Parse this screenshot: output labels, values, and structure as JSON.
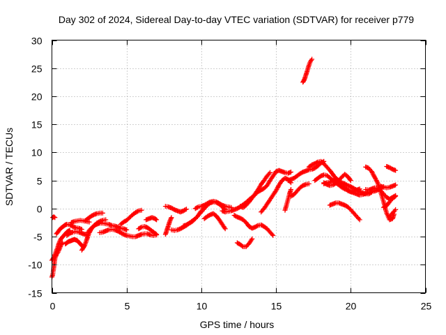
{
  "chart_data": {
    "type": "scatter",
    "title": "Day 302 of 2024, Sidereal Day-to-day VTEC variation (SDTVAR) for receiver p779",
    "xlabel": "GPS time / hours",
    "ylabel": "SDTVAR / TECUs",
    "xlim": [
      0,
      25
    ],
    "ylim": [
      -15,
      30
    ],
    "xticks": [
      0,
      5,
      10,
      15,
      20,
      25
    ],
    "yticks": [
      -15,
      -10,
      -5,
      0,
      5,
      10,
      15,
      20,
      25,
      30
    ],
    "grid": true,
    "marker": "plus",
    "color": "#ff0000",
    "series": [
      {
        "name": "arc-1",
        "x": [
          0.0,
          0.05,
          0.1,
          0.15,
          0.2,
          0.25,
          0.3,
          0.35,
          0.4,
          0.5,
          0.6,
          0.7
        ],
        "y": [
          -12.2,
          -11.8,
          -11,
          -10,
          -9,
          -8.5,
          -8.2,
          -8,
          -7.8,
          -7.2,
          -6.6,
          -6
        ]
      },
      {
        "name": "arc-2",
        "x": [
          0.0,
          0.1,
          0.2,
          0.3,
          0.4,
          0.5,
          0.6,
          0.7,
          0.8,
          0.9,
          1.0,
          1.1,
          1.2
        ],
        "y": [
          -9.2,
          -8.8,
          -8.2,
          -7.5,
          -6.8,
          -6,
          -5.4,
          -5.1,
          -4.8,
          -4.5,
          -4.2,
          -4,
          -3.9
        ]
      },
      {
        "name": "arc-3",
        "x": [
          0.05,
          0.1,
          0.15,
          0.2
        ],
        "y": [
          -1.6,
          -1.5,
          -1.5,
          -1.6
        ]
      },
      {
        "name": "arc-4",
        "x": [
          0.3,
          0.4,
          0.5,
          0.6,
          0.7,
          0.8,
          0.9,
          1.0,
          1.2,
          1.4,
          1.6,
          1.8,
          2.0
        ],
        "y": [
          -4.5,
          -4.2,
          -3.8,
          -3.5,
          -3.3,
          -3.1,
          -2.9,
          -2.8,
          -2.9,
          -3.2,
          -3.4,
          -3.5,
          -3.7
        ]
      },
      {
        "name": "arc-5",
        "x": [
          0.9,
          1.0,
          1.1,
          1.2,
          1.3,
          1.4,
          1.5,
          1.6,
          1.7,
          1.8,
          1.9,
          2.0,
          2.1
        ],
        "y": [
          -6.3,
          -6.1,
          -5.9,
          -5.8,
          -5.7,
          -5.6,
          -5.5,
          -5.6,
          -5.7,
          -6,
          -6.3,
          -6.6,
          -6.8
        ]
      },
      {
        "name": "arc-6",
        "x": [
          1.0,
          1.2,
          1.4,
          1.6,
          1.8,
          2.0,
          2.2,
          2.4
        ],
        "y": [
          -4.8,
          -4.4,
          -4.2,
          -4.1,
          -4.2,
          -4.4,
          -4.6,
          -4.8
        ]
      },
      {
        "name": "arc-7",
        "x": [
          1.3,
          1.5,
          1.7,
          1.9,
          2.1,
          2.3,
          2.5
        ],
        "y": [
          -2.5,
          -2.3,
          -2.2,
          -2.1,
          -2.2,
          -2.3,
          -2.4
        ]
      },
      {
        "name": "arc-8",
        "x": [
          2.0,
          2.1,
          2.2,
          2.3,
          2.4,
          2.5,
          2.6,
          2.7,
          2.8,
          2.9,
          3.0,
          3.2,
          3.4,
          3.6,
          3.8,
          4.0,
          4.2,
          4.4,
          4.6,
          4.8,
          5.0
        ],
        "y": [
          -7.4,
          -7,
          -6.5,
          -5.8,
          -5,
          -4.3,
          -3.8,
          -3.4,
          -3.1,
          -2.9,
          -2.8,
          -2.6,
          -2.6,
          -2.7,
          -2.8,
          -3,
          -3.1,
          -3.3,
          -3.5,
          -3.6,
          -3.8
        ]
      },
      {
        "name": "arc-9",
        "x": [
          2.2,
          2.4,
          2.6,
          2.8,
          3.0,
          3.2,
          3.4
        ],
        "y": [
          -2.2,
          -1.8,
          -1.4,
          -1.1,
          -0.9,
          -0.8,
          -0.8
        ]
      },
      {
        "name": "arc-10",
        "x": [
          2.4,
          2.6,
          2.8,
          3.0,
          3.2,
          3.4,
          3.6
        ],
        "y": [
          -4.2,
          -3.6,
          -3.1,
          -2.6,
          -2.3,
          -2.1,
          -2
        ]
      },
      {
        "name": "arc-11",
        "x": [
          3.2,
          3.4,
          3.6,
          3.8,
          4.0,
          4.2,
          4.4,
          4.6,
          4.8,
          5.0,
          5.2,
          5.4,
          5.6,
          5.8,
          6.0,
          6.2,
          6.4,
          6.6,
          6.8,
          7.0
        ],
        "y": [
          -4.3,
          -4.2,
          -4,
          -3.8,
          -3.7,
          -3.8,
          -4,
          -4.3,
          -4.6,
          -4.8,
          -4.9,
          -5,
          -5,
          -4.8,
          -4.6,
          -4.5,
          -4.5,
          -4.7,
          -4.8,
          -4.7
        ]
      },
      {
        "name": "arc-12",
        "x": [
          4.6,
          4.8,
          5.0,
          5.2,
          5.4,
          5.6,
          5.8,
          6.0
        ],
        "y": [
          -2.8,
          -2.4,
          -2.1,
          -1.6,
          -1.1,
          -0.7,
          -0.4,
          -0.3
        ]
      },
      {
        "name": "arc-13",
        "x": [
          5.8,
          6.0,
          6.2,
          6.4,
          6.6,
          6.8,
          7.0
        ],
        "y": [
          -3.6,
          -3.3,
          -3.2,
          -3.4,
          -3.8,
          -4.2,
          -4.6
        ]
      },
      {
        "name": "arc-14",
        "x": [
          6.3,
          6.5,
          6.7,
          6.9,
          7.0
        ],
        "y": [
          -2,
          -1.8,
          -1.6,
          -1.8,
          -2
        ]
      },
      {
        "name": "arc-15",
        "x": [
          7.6,
          7.7,
          7.8,
          7.9,
          8.0
        ],
        "y": [
          -4.6,
          -3.8,
          -3,
          -2.2,
          -1.6
        ]
      },
      {
        "name": "arc-16",
        "x": [
          7.6,
          7.8,
          8.0,
          8.2,
          8.4,
          8.6,
          8.8,
          9.0
        ],
        "y": [
          0.4,
          0.3,
          0.1,
          -0.2,
          -0.4,
          -0.6,
          -0.4,
          -0.1
        ]
      },
      {
        "name": "arc-17",
        "x": [
          8.0,
          8.2,
          8.4,
          8.6,
          8.8,
          9.0,
          9.2,
          9.4,
          9.6,
          9.8,
          10.0,
          10.2,
          10.4,
          10.6,
          10.8,
          11.0,
          11.2,
          11.4,
          11.6
        ],
        "y": [
          -3.8,
          -3.9,
          -3.8,
          -3.6,
          -3.3,
          -3,
          -2.6,
          -2.2,
          -1.8,
          -1.2,
          -0.6,
          0,
          0.6,
          1,
          1.2,
          1.1,
          0.8,
          0.3,
          -0.2
        ]
      },
      {
        "name": "arc-18",
        "x": [
          8.8,
          9.0,
          9.2,
          9.4,
          9.6,
          9.8,
          10.0
        ],
        "y": [
          -3.1,
          -2.9,
          -2.6,
          -2.3,
          -1.8,
          -1.2,
          -0.4
        ]
      },
      {
        "name": "arc-19",
        "x": [
          9.6,
          9.8,
          10.0,
          10.2,
          10.4,
          10.6,
          10.8,
          11.0,
          11.2,
          11.4,
          11.6,
          11.8,
          12.0
        ],
        "y": [
          0,
          0.3,
          0.4,
          0.6,
          0.9,
          1.2,
          1.3,
          1.2,
          0.9,
          0.6,
          0.4,
          0.3,
          0.2
        ]
      },
      {
        "name": "arc-20",
        "x": [
          10.2,
          10.4,
          10.6,
          10.8,
          11.0,
          11.2,
          11.4,
          11.6
        ],
        "y": [
          -1.8,
          -1.4,
          -1.1,
          -0.9,
          -1.3,
          -2,
          -2.8,
          -3.6
        ]
      },
      {
        "name": "arc-21",
        "x": [
          11.4,
          11.6,
          11.8,
          12.0,
          12.2,
          12.4,
          12.6,
          12.8,
          13.0,
          13.2,
          13.4,
          13.6,
          13.8,
          14.0,
          14.2,
          14.4,
          14.6
        ],
        "y": [
          -0.4,
          -0.6,
          -0.5,
          -0.4,
          -0.2,
          0,
          0.3,
          0.7,
          1.1,
          1.6,
          2,
          2.6,
          3.4,
          4.3,
          5,
          5.8,
          6.4
        ]
      },
      {
        "name": "arc-22",
        "x": [
          12.2,
          12.4,
          12.6,
          12.8,
          13.0,
          13.2,
          13.4,
          13.6,
          13.8,
          14.0,
          14.2,
          14.4,
          14.6,
          14.8
        ],
        "y": [
          -1.2,
          -1.5,
          -1.7,
          -2,
          -2.5,
          -3.2,
          -3.5,
          -3.3,
          -3,
          -2.9,
          -3.2,
          -3.6,
          -4.2,
          -4.8
        ]
      },
      {
        "name": "arc-23",
        "x": [
          12.4,
          12.6,
          12.8,
          13.0,
          13.2,
          13.4
        ],
        "y": [
          -6.1,
          -6.4,
          -6.8,
          -6.8,
          -6.2,
          -5.4
        ]
      },
      {
        "name": "arc-24",
        "x": [
          12.6,
          12.8,
          13.0,
          13.2,
          13.4,
          13.6,
          13.8,
          14.0,
          14.2,
          14.4,
          14.6,
          14.8,
          15.0,
          15.2,
          15.4,
          15.6,
          15.8,
          16.0
        ],
        "y": [
          0.4,
          0.2,
          0.6,
          1.2,
          1.9,
          2.5,
          3,
          3.3,
          3.6,
          4.1,
          5,
          5.8,
          6.6,
          6.8,
          6.6,
          6.4,
          6.3,
          6.5
        ]
      },
      {
        "name": "arc-25",
        "x": [
          14.0,
          14.2,
          14.4,
          14.6,
          14.8,
          15.0,
          15.2,
          15.4,
          15.6,
          15.8,
          16.0
        ],
        "y": [
          -0.6,
          0,
          0.8,
          1.6,
          2.4,
          3.2,
          4.2,
          5,
          5.4,
          5.2,
          4.6
        ]
      },
      {
        "name": "arc-26",
        "x": [
          15.6,
          15.7,
          15.8,
          15.9,
          16.0
        ],
        "y": [
          -0.3,
          0.6,
          1.6,
          2.6,
          3.4
        ]
      },
      {
        "name": "arc-27",
        "x": [
          15.8,
          16.0,
          16.2,
          16.4,
          16.6,
          16.8,
          17.0,
          17.2,
          17.4,
          17.6,
          17.8,
          18.0,
          18.2
        ],
        "y": [
          5,
          5.2,
          5.4,
          5.8,
          6.2,
          6.5,
          6.7,
          6.9,
          7,
          7.2,
          7.6,
          8.1,
          8.4
        ]
      },
      {
        "name": "arc-28",
        "x": [
          16.0,
          16.2,
          16.4,
          16.6,
          16.8,
          17.0,
          17.2
        ],
        "y": [
          2.2,
          2.5,
          3.1,
          3.7,
          4.1,
          4.3,
          4.4
        ]
      },
      {
        "name": "arc-29",
        "x": [
          16.8,
          16.9,
          17.0,
          17.1,
          17.2,
          17.3,
          17.4
        ],
        "y": [
          22.5,
          23,
          23.8,
          24.6,
          25.5,
          26.2,
          26.6
        ]
      },
      {
        "name": "arc-30",
        "x": [
          17.2,
          17.4,
          17.6,
          17.8,
          18.0,
          18.2,
          18.4,
          18.6,
          18.8,
          19.0,
          19.2,
          19.4,
          19.6,
          19.8,
          20.0
        ],
        "y": [
          7.4,
          7.8,
          8,
          8.3,
          8.4,
          8,
          7.4,
          6.8,
          6.1,
          5.4,
          5,
          5.6,
          6.1,
          5.7,
          5
        ]
      },
      {
        "name": "arc-31",
        "x": [
          17.6,
          17.8,
          18.0,
          18.2,
          18.4,
          18.6,
          18.8,
          19.0,
          19.2,
          19.4,
          19.6,
          19.8,
          20.0,
          20.2,
          20.4,
          20.6,
          20.8,
          21.0,
          21.2,
          21.4,
          21.6,
          21.8,
          22.0,
          22.2
        ],
        "y": [
          5,
          5.4,
          5.8,
          6,
          5.9,
          5.5,
          5,
          4.6,
          4.2,
          3.8,
          3.5,
          3.3,
          3,
          2.8,
          2.6,
          2.4,
          2.5,
          2.7,
          2.9,
          3,
          3.1,
          3.3,
          3.6,
          3.9
        ]
      },
      {
        "name": "arc-32",
        "x": [
          18.2,
          18.4,
          18.6,
          18.8,
          19.0,
          19.2,
          19.4,
          19.6,
          19.8,
          20.0,
          20.2,
          20.4,
          20.6,
          20.8,
          21.0,
          21.2,
          21.4
        ],
        "y": [
          4.6,
          4.3,
          4.1,
          4.2,
          4.5,
          4.8,
          4.6,
          4.4,
          4.1,
          3.9,
          3.6,
          3.3,
          3,
          2.8,
          2.6,
          2.6,
          2.9
        ]
      },
      {
        "name": "arc-33",
        "x": [
          18.2,
          18.4,
          18.6,
          18.8,
          19.0,
          19.2,
          19.4,
          19.6,
          19.8,
          20.0,
          20.2,
          20.4,
          20.6
        ],
        "y": [
          4.4,
          4.6,
          4.7,
          5,
          5.2,
          4.8,
          4.3,
          3.7,
          3.2,
          3,
          3.1,
          3.3,
          3.5
        ]
      },
      {
        "name": "arc-34",
        "x": [
          18.6,
          18.8,
          19.0,
          19.2,
          19.4,
          19.6,
          19.8,
          20.0,
          20.2,
          20.4,
          20.6
        ],
        "y": [
          0.6,
          0.8,
          1,
          1,
          0.8,
          0.6,
          0.3,
          -0.2,
          -0.8,
          -1.4,
          -2
        ]
      },
      {
        "name": "arc-35",
        "x": [
          21.0,
          21.2,
          21.4,
          21.6,
          21.8,
          22.0,
          22.2,
          22.4,
          22.6,
          22.8,
          23.0
        ],
        "y": [
          3.4,
          3.3,
          3.5,
          3.7,
          3.6,
          3.2,
          2.6,
          2,
          1.7,
          2,
          2.3
        ]
      },
      {
        "name": "arc-36",
        "x": [
          21.0,
          21.2,
          21.4,
          21.6,
          21.8,
          22.0,
          22.2,
          22.4,
          22.6,
          22.8,
          22.9
        ],
        "y": [
          7.4,
          7.2,
          6.6,
          5.6,
          4.6,
          3,
          1.2,
          -0.8,
          -2,
          -1.8,
          -1
        ]
      },
      {
        "name": "arc-37",
        "x": [
          22.2,
          22.4,
          22.6,
          22.8,
          23.0
        ],
        "y": [
          0.2,
          0.5,
          1.2,
          1.8,
          2.2
        ]
      },
      {
        "name": "arc-38",
        "x": [
          22.0,
          22.2,
          22.4,
          22.6,
          22.8,
          23.0
        ],
        "y": [
          4,
          3.8,
          3.7,
          3.8,
          4,
          4.2
        ]
      },
      {
        "name": "arc-39",
        "x": [
          22.4,
          22.6,
          22.8,
          23.0
        ],
        "y": [
          7.5,
          7.3,
          7,
          6.8
        ]
      },
      {
        "name": "arc-40",
        "x": [
          22.6,
          22.8,
          23.0
        ],
        "y": [
          -1.4,
          -0.8,
          -0.2
        ]
      }
    ]
  }
}
